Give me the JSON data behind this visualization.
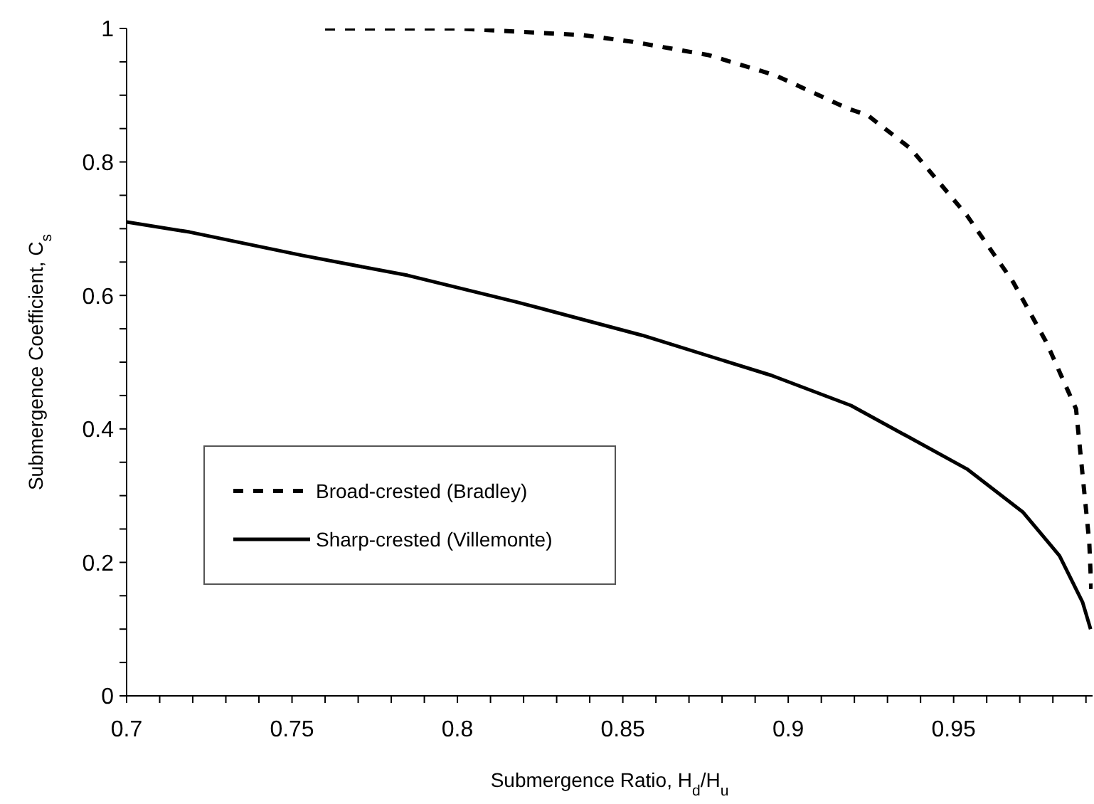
{
  "chart_data": {
    "type": "line",
    "xlabel": "Submergence Ratio, H$_{d}$/H$_{u}$",
    "ylabel": "Submergence Coefficient, C$_{s}$",
    "xlim": [
      0.7,
      0.992
    ],
    "ylim": [
      0,
      1
    ],
    "xticks": [
      0.7,
      {
        "value": 0.71,
        "label": null
      },
      {
        "value": 0.72,
        "label": null
      },
      {
        "value": 0.73,
        "label": null
      },
      {
        "value": 0.74,
        "label": null
      },
      0.75,
      {
        "value": 0.76,
        "label": null
      },
      {
        "value": 0.77,
        "label": null
      },
      {
        "value": 0.78,
        "label": null
      },
      {
        "value": 0.79,
        "label": null
      },
      0.8,
      {
        "value": 0.81,
        "label": null
      },
      {
        "value": 0.82,
        "label": null
      },
      {
        "value": 0.83,
        "label": null
      },
      {
        "value": 0.84,
        "label": null
      },
      0.85,
      {
        "value": 0.86,
        "label": null
      },
      {
        "value": 0.87,
        "label": null
      },
      {
        "value": 0.88,
        "label": null
      },
      {
        "value": 0.89,
        "label": null
      },
      0.9,
      {
        "value": 0.91,
        "label": null
      },
      {
        "value": 0.92,
        "label": null
      },
      {
        "value": 0.93,
        "label": null
      },
      {
        "value": 0.94,
        "label": null
      },
      0.95,
      {
        "value": 0.96,
        "label": null
      },
      {
        "value": 0.97,
        "label": null
      },
      {
        "value": 0.98,
        "label": null
      },
      {
        "value": 0.99,
        "label": null
      }
    ],
    "yticks": [
      0,
      {
        "value": 0.05,
        "label": null
      },
      {
        "value": 0.1,
        "label": null
      },
      {
        "value": 0.15,
        "label": null
      },
      0.2,
      {
        "value": 0.25,
        "label": null
      },
      {
        "value": 0.3,
        "label": null
      },
      {
        "value": 0.35,
        "label": null
      },
      0.4,
      {
        "value": 0.45,
        "label": null
      },
      {
        "value": 0.5,
        "label": null
      },
      {
        "value": 0.55,
        "label": null
      },
      0.6,
      {
        "value": 0.65,
        "label": null
      },
      {
        "value": 0.7,
        "label": null
      },
      {
        "value": 0.75,
        "label": null
      },
      0.8,
      {
        "value": 0.85,
        "label": null
      },
      {
        "value": 0.9,
        "label": null
      },
      {
        "value": 0.95,
        "label": null
      },
      1
    ],
    "legend": "bottom left",
    "grid": false,
    "marker": "none",
    "series": [
      {
        "name": "Broad-crested (Bradley)",
        "color": "#000000",
        "line_style": "dashed",
        "x": [
          0.76,
          0.8,
          0.838,
          0.853,
          0.876,
          0.896,
          0.918,
          0.924,
          0.937,
          0.954,
          0.968,
          0.978,
          0.987,
          0.989,
          0.991,
          0.9916
        ],
        "values": [
          1.0,
          1.0,
          0.99,
          0.98,
          0.96,
          0.93,
          0.88,
          0.87,
          0.82,
          0.72,
          0.62,
          0.53,
          0.43,
          0.33,
          0.23,
          0.16
        ]
      },
      {
        "name": "Sharp-crested (Villemonte)",
        "color": "#000000",
        "line_style": "solid",
        "x": [
          0.7,
          0.719,
          0.753,
          0.785,
          0.818,
          0.856,
          0.895,
          0.919,
          0.954,
          0.971,
          0.982,
          0.989,
          0.9914
        ],
        "values": [
          0.71,
          0.695,
          0.66,
          0.63,
          0.59,
          0.54,
          0.48,
          0.435,
          0.34,
          0.275,
          0.21,
          0.14,
          0.1
        ]
      }
    ]
  }
}
